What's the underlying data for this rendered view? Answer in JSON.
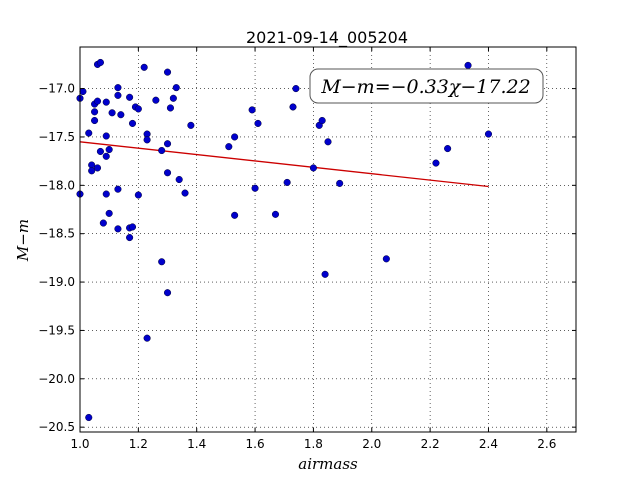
{
  "chart_data": {
    "type": "scatter",
    "title": "2021-09-14_005204",
    "xlabel": "airmass",
    "ylabel": "M−m",
    "xlim": [
      1.0,
      2.7
    ],
    "ylim": [
      -20.55,
      -16.57
    ],
    "y_inverted": true,
    "x_ticks": [
      1.0,
      1.2,
      1.4,
      1.6,
      1.8,
      2.0,
      2.2,
      2.4,
      2.6
    ],
    "x_tick_labels": [
      "1.0",
      "1.2",
      "1.4",
      "1.6",
      "1.8",
      "2.0",
      "2.2",
      "2.4",
      "2.6"
    ],
    "y_ticks": [
      -17.0,
      -17.5,
      -18.0,
      -18.5,
      -19.0,
      -19.5,
      -20.0,
      -20.5
    ],
    "y_tick_labels": [
      "−17.0",
      "−17.5",
      "−18.0",
      "−18.5",
      "−19.0",
      "−19.5",
      "−20.0",
      "−20.5"
    ],
    "grid": true,
    "annotation": "M−m=−0.33χ−17.22",
    "colors": {
      "points": "#0000cc",
      "fit": "#cc0000"
    },
    "fit_line": {
      "slope": -0.33,
      "intercept": -17.22,
      "x_range": [
        1.0,
        2.4
      ]
    },
    "points": [
      {
        "x": 1.0,
        "y": -17.1
      },
      {
        "x": 1.0,
        "y": -18.09
      },
      {
        "x": 1.01,
        "y": -17.03
      },
      {
        "x": 1.03,
        "y": -17.46
      },
      {
        "x": 1.03,
        "y": -20.4
      },
      {
        "x": 1.04,
        "y": -17.79
      },
      {
        "x": 1.04,
        "y": -17.85
      },
      {
        "x": 1.05,
        "y": -17.16
      },
      {
        "x": 1.05,
        "y": -17.24
      },
      {
        "x": 1.05,
        "y": -17.33
      },
      {
        "x": 1.06,
        "y": -17.13
      },
      {
        "x": 1.06,
        "y": -17.82
      },
      {
        "x": 1.06,
        "y": -16.75
      },
      {
        "x": 1.07,
        "y": -16.73
      },
      {
        "x": 1.07,
        "y": -17.65
      },
      {
        "x": 1.08,
        "y": -18.39
      },
      {
        "x": 1.09,
        "y": -17.49
      },
      {
        "x": 1.09,
        "y": -17.7
      },
      {
        "x": 1.09,
        "y": -18.09
      },
      {
        "x": 1.09,
        "y": -17.14
      },
      {
        "x": 1.1,
        "y": -18.29
      },
      {
        "x": 1.1,
        "y": -17.63
      },
      {
        "x": 1.11,
        "y": -17.25
      },
      {
        "x": 1.13,
        "y": -18.04
      },
      {
        "x": 1.13,
        "y": -18.45
      },
      {
        "x": 1.13,
        "y": -16.99
      },
      {
        "x": 1.13,
        "y": -17.07
      },
      {
        "x": 1.14,
        "y": -17.27
      },
      {
        "x": 1.17,
        "y": -17.09
      },
      {
        "x": 1.17,
        "y": -18.44
      },
      {
        "x": 1.17,
        "y": -18.54
      },
      {
        "x": 1.18,
        "y": -17.36
      },
      {
        "x": 1.18,
        "y": -18.43
      },
      {
        "x": 1.19,
        "y": -17.19
      },
      {
        "x": 1.2,
        "y": -17.21
      },
      {
        "x": 1.2,
        "y": -18.1
      },
      {
        "x": 1.22,
        "y": -16.78
      },
      {
        "x": 1.23,
        "y": -17.47
      },
      {
        "x": 1.23,
        "y": -17.53
      },
      {
        "x": 1.23,
        "y": -19.58
      },
      {
        "x": 1.26,
        "y": -17.12
      },
      {
        "x": 1.28,
        "y": -17.64
      },
      {
        "x": 1.28,
        "y": -18.79
      },
      {
        "x": 1.3,
        "y": -17.57
      },
      {
        "x": 1.3,
        "y": -17.87
      },
      {
        "x": 1.3,
        "y": -19.11
      },
      {
        "x": 1.3,
        "y": -16.83
      },
      {
        "x": 1.31,
        "y": -17.2
      },
      {
        "x": 1.32,
        "y": -17.1
      },
      {
        "x": 1.33,
        "y": -16.99
      },
      {
        "x": 1.34,
        "y": -17.94
      },
      {
        "x": 1.36,
        "y": -18.08
      },
      {
        "x": 1.38,
        "y": -17.38
      },
      {
        "x": 1.51,
        "y": -17.6
      },
      {
        "x": 1.53,
        "y": -17.5
      },
      {
        "x": 1.53,
        "y": -18.31
      },
      {
        "x": 1.59,
        "y": -17.22
      },
      {
        "x": 1.6,
        "y": -18.03
      },
      {
        "x": 1.61,
        "y": -17.36
      },
      {
        "x": 1.67,
        "y": -18.3
      },
      {
        "x": 1.71,
        "y": -17.97
      },
      {
        "x": 1.73,
        "y": -17.19
      },
      {
        "x": 1.74,
        "y": -17.0
      },
      {
        "x": 1.8,
        "y": -17.82
      },
      {
        "x": 1.82,
        "y": -17.38
      },
      {
        "x": 1.83,
        "y": -17.33
      },
      {
        "x": 1.84,
        "y": -18.92
      },
      {
        "x": 1.85,
        "y": -17.55
      },
      {
        "x": 1.89,
        "y": -17.98
      },
      {
        "x": 2.05,
        "y": -18.76
      },
      {
        "x": 2.22,
        "y": -17.77
      },
      {
        "x": 2.26,
        "y": -17.62
      },
      {
        "x": 2.33,
        "y": -16.76
      },
      {
        "x": 2.4,
        "y": -17.47
      }
    ]
  }
}
